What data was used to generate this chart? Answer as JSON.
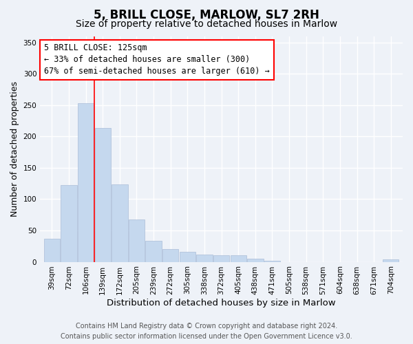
{
  "title": "5, BRILL CLOSE, MARLOW, SL7 2RH",
  "subtitle": "Size of property relative to detached houses in Marlow",
  "xlabel": "Distribution of detached houses by size in Marlow",
  "ylabel": "Number of detached properties",
  "bar_color": "#c5d8ee",
  "bar_edge_color": "#aabdd8",
  "categories": [
    "39sqm",
    "72sqm",
    "106sqm",
    "139sqm",
    "172sqm",
    "205sqm",
    "239sqm",
    "272sqm",
    "305sqm",
    "338sqm",
    "372sqm",
    "405sqm",
    "438sqm",
    "471sqm",
    "505sqm",
    "538sqm",
    "571sqm",
    "604sqm",
    "638sqm",
    "671sqm",
    "704sqm"
  ],
  "values": [
    37,
    122,
    253,
    213,
    124,
    68,
    34,
    20,
    16,
    12,
    10,
    10,
    5,
    2,
    0,
    0,
    0,
    0,
    0,
    0,
    4
  ],
  "ylim": [
    0,
    360
  ],
  "yticks": [
    0,
    50,
    100,
    150,
    200,
    250,
    300,
    350
  ],
  "property_line_x": 2.5,
  "property_line_label": "5 BRILL CLOSE: 125sqm",
  "annotation_line1": "← 33% of detached houses are smaller (300)",
  "annotation_line2": "67% of semi-detached houses are larger (610) →",
  "footer_line1": "Contains HM Land Registry data © Crown copyright and database right 2024.",
  "footer_line2": "Contains public sector information licensed under the Open Government Licence v3.0.",
  "background_color": "#eef2f8",
  "plot_bg_color": "#eef2f8",
  "grid_color": "#ffffff",
  "title_fontsize": 12,
  "subtitle_fontsize": 10,
  "xlabel_fontsize": 9.5,
  "ylabel_fontsize": 9,
  "tick_fontsize": 7.5,
  "footer_fontsize": 7,
  "annotation_fontsize": 8.5
}
